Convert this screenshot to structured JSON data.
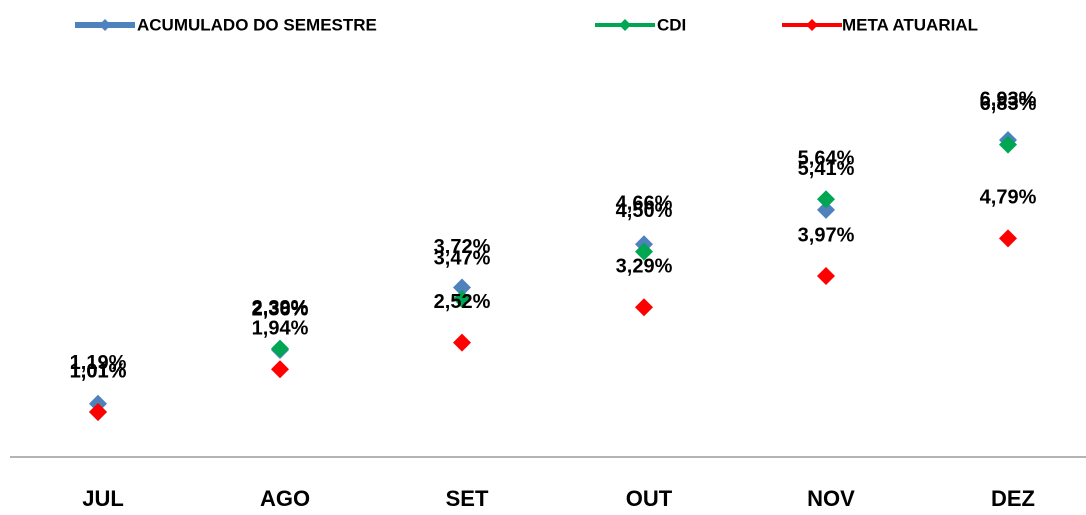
{
  "chart_data": {
    "type": "line",
    "categories": [
      "JUL",
      "AGO",
      "SET",
      "OUT",
      "NOV",
      "DEZ"
    ],
    "series": [
      {
        "name": "ACUMULADO DO SEMESTRE",
        "color": "#4f81bd",
        "values": [
          1.19,
          2.36,
          3.72,
          4.66,
          5.41,
          6.93
        ],
        "value_labels": [
          "1,19%",
          "2,36%",
          "3,72%",
          "4,66%",
          "5,41%",
          "6,93%"
        ]
      },
      {
        "name": "CDI",
        "color": "#00a651",
        "values": [
          1.01,
          2.39,
          3.47,
          4.5,
          5.64,
          6.83
        ],
        "value_labels": [
          "1,01%",
          "2,39%",
          "3,47%",
          "4,50%",
          "5,64%",
          "6,83%"
        ]
      },
      {
        "name": "META ATUARIAL",
        "color": "#ff0000",
        "values": [
          1.01,
          1.94,
          2.52,
          3.29,
          3.97,
          4.79
        ],
        "value_labels": [
          "1,01%",
          "1,94%",
          "2,52%",
          "3,29%",
          "3,97%",
          "4,79%"
        ]
      }
    ]
  }
}
